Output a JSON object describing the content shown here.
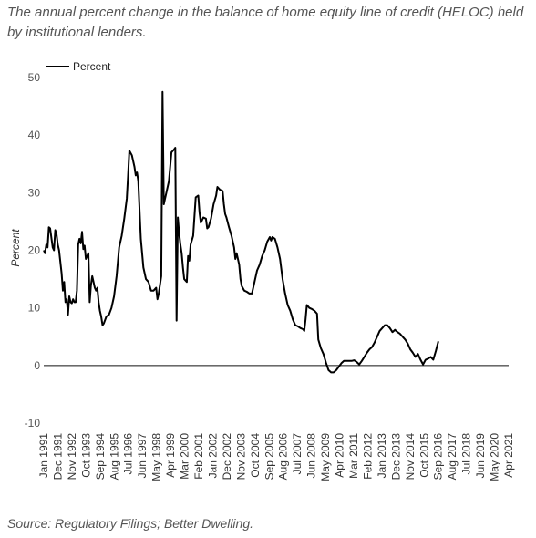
{
  "title": "The annual percent change in the balance of home equity line of credit (HELOC) held by institutional lenders.",
  "source": "Source: Regulatory Filings; Better Dwelling.",
  "chart_data": {
    "type": "line",
    "ylabel": "Percent",
    "ylim": [
      -10,
      50
    ],
    "yticks": [
      -10,
      0,
      10,
      20,
      30,
      40,
      50
    ],
    "legend_position": "top-left",
    "grid": false,
    "zero_line": true,
    "x_tick_labels": [
      "Jan 1991",
      "Dec 1991",
      "Nov 1992",
      "Oct 1993",
      "Sep 1994",
      "Aug 1995",
      "Jul 1996",
      "Jun 1997",
      "May 1998",
      "Apr 1999",
      "Mar 2000",
      "Feb 2001",
      "Jan 2002",
      "Dec 2002",
      "Nov 2003",
      "Oct 2004",
      "Sep 2005",
      "Aug 2006",
      "Jul 2007",
      "Jun 2008",
      "May 2009",
      "Apr 2010",
      "Mar 2011",
      "Feb 2012",
      "Jan 2013",
      "Dec 2013",
      "Nov 2014",
      "Oct 2015",
      "Sep 2016",
      "Aug 2017",
      "Jul 2018",
      "Jun 2019",
      "May 2020",
      "Apr 2021"
    ],
    "series": [
      {
        "name": "Percent",
        "color": "#000000",
        "points": [
          [
            "1991-01",
            20
          ],
          [
            "1991-02",
            19.5
          ],
          [
            "1991-03",
            21
          ],
          [
            "1991-04",
            20.5
          ],
          [
            "1991-05",
            24
          ],
          [
            "1991-06",
            23.8
          ],
          [
            "1991-08",
            20.5
          ],
          [
            "1991-09",
            20
          ],
          [
            "1991-10",
            23.5
          ],
          [
            "1991-11",
            22.8
          ],
          [
            "1991-12",
            21
          ],
          [
            "1992-01",
            20
          ],
          [
            "1992-02",
            18
          ],
          [
            "1992-03",
            16
          ],
          [
            "1992-04",
            13
          ],
          [
            "1992-05",
            14.5
          ],
          [
            "1992-06",
            11
          ],
          [
            "1992-07",
            11.5
          ],
          [
            "1992-08",
            8.8
          ],
          [
            "1992-09",
            12
          ],
          [
            "1992-10",
            11
          ],
          [
            "1992-11",
            10.8
          ],
          [
            "1992-12",
            11.5
          ],
          [
            "1993-01",
            11
          ],
          [
            "1993-02",
            11
          ],
          [
            "1993-03",
            13
          ],
          [
            "1993-04",
            21
          ],
          [
            "1993-05",
            22
          ],
          [
            "1993-06",
            21.2
          ],
          [
            "1993-07",
            23.2
          ],
          [
            "1993-08",
            20.2
          ],
          [
            "1993-09",
            20.8
          ],
          [
            "1993-10",
            18.5
          ],
          [
            "1993-11",
            19
          ],
          [
            "1993-12",
            19.5
          ],
          [
            "1994-01",
            11
          ],
          [
            "1994-02",
            14
          ],
          [
            "1994-03",
            15.5
          ],
          [
            "1994-04",
            14.5
          ],
          [
            "1994-05",
            13.5
          ],
          [
            "1994-06",
            13
          ],
          [
            "1994-07",
            13.5
          ],
          [
            "1994-08",
            11
          ],
          [
            "1994-09",
            9.5
          ],
          [
            "1994-10",
            8.5
          ],
          [
            "1994-11",
            7
          ],
          [
            "1994-12",
            7.3
          ],
          [
            "1995-02",
            8.5
          ],
          [
            "1995-04",
            8.8
          ],
          [
            "1995-06",
            10
          ],
          [
            "1995-08",
            12
          ],
          [
            "1995-10",
            15.5
          ],
          [
            "1995-12",
            20.5
          ],
          [
            "1996-02",
            22.5
          ],
          [
            "1996-04",
            25.5
          ],
          [
            "1996-06",
            29
          ],
          [
            "1996-07",
            33
          ],
          [
            "1996-08",
            37.3
          ],
          [
            "1996-10",
            36.5
          ],
          [
            "1996-12",
            34.5
          ],
          [
            "1997-01",
            33
          ],
          [
            "1997-02",
            33.5
          ],
          [
            "1997-03",
            32
          ],
          [
            "1997-04",
            27
          ],
          [
            "1997-05",
            22
          ],
          [
            "1997-07",
            17
          ],
          [
            "1997-09",
            15
          ],
          [
            "1997-11",
            14.5
          ],
          [
            "1998-01",
            13
          ],
          [
            "1998-03",
            13
          ],
          [
            "1998-05",
            13.5
          ],
          [
            "1998-06",
            11.5
          ],
          [
            "1998-07",
            12.5
          ],
          [
            "1998-09",
            15.5
          ],
          [
            "1998-10",
            47.5
          ],
          [
            "1998-11",
            28
          ],
          [
            "1999-01",
            30
          ],
          [
            "1999-03",
            32
          ],
          [
            "1999-05",
            37
          ],
          [
            "1999-07",
            37.5
          ],
          [
            "1999-08",
            37.8
          ],
          [
            "1999-09",
            7.8
          ],
          [
            "1999-10",
            25.7
          ],
          [
            "1999-11",
            23
          ],
          [
            "1999-12",
            21
          ],
          [
            "2000-01",
            19.5
          ],
          [
            "2000-02",
            17
          ],
          [
            "2000-03",
            15
          ],
          [
            "2000-05",
            14.5
          ],
          [
            "2000-06",
            19
          ],
          [
            "2000-07",
            18.2
          ],
          [
            "2000-08",
            21
          ],
          [
            "2000-10",
            22.5
          ],
          [
            "2000-12",
            29.2
          ],
          [
            "2001-02",
            29.5
          ],
          [
            "2001-03",
            26.5
          ],
          [
            "2001-04",
            24.8
          ],
          [
            "2001-06",
            25.7
          ],
          [
            "2001-08",
            25.5
          ],
          [
            "2001-09",
            23.8
          ],
          [
            "2001-10",
            24
          ],
          [
            "2001-12",
            25.5
          ],
          [
            "2002-02",
            28
          ],
          [
            "2002-04",
            29.5
          ],
          [
            "2002-05",
            31
          ],
          [
            "2002-07",
            30.5
          ],
          [
            "2002-09",
            30.3
          ],
          [
            "2002-10",
            28
          ],
          [
            "2002-11",
            26.3
          ],
          [
            "2002-12",
            25.7
          ],
          [
            "2003-02",
            24
          ],
          [
            "2003-04",
            22.5
          ],
          [
            "2003-06",
            20.5
          ],
          [
            "2003-07",
            18.5
          ],
          [
            "2003-08",
            19.5
          ],
          [
            "2003-10",
            17.5
          ],
          [
            "2003-11",
            15
          ],
          [
            "2003-12",
            13.8
          ],
          [
            "2004-02",
            13
          ],
          [
            "2004-04",
            12.8
          ],
          [
            "2004-06",
            12.5
          ],
          [
            "2004-08",
            12.5
          ],
          [
            "2004-10",
            14.5
          ],
          [
            "2004-12",
            16.5
          ],
          [
            "2005-02",
            17.5
          ],
          [
            "2005-04",
            19
          ],
          [
            "2005-06",
            20
          ],
          [
            "2005-08",
            21.5
          ],
          [
            "2005-10",
            22.3
          ],
          [
            "2005-11",
            21.7
          ],
          [
            "2005-12",
            22.3
          ],
          [
            "2006-02",
            22
          ],
          [
            "2006-04",
            20.5
          ],
          [
            "2006-06",
            18.5
          ],
          [
            "2006-08",
            15
          ],
          [
            "2006-10",
            12.5
          ],
          [
            "2006-12",
            10.5
          ],
          [
            "2007-02",
            9.5
          ],
          [
            "2007-04",
            8
          ],
          [
            "2007-06",
            7
          ],
          [
            "2007-08",
            6.8
          ],
          [
            "2007-10",
            6.5
          ],
          [
            "2007-12",
            6.3
          ],
          [
            "2008-01",
            6
          ],
          [
            "2008-02",
            8
          ],
          [
            "2008-03",
            10.5
          ],
          [
            "2008-05",
            10
          ],
          [
            "2008-07",
            9.8
          ],
          [
            "2008-09",
            9.5
          ],
          [
            "2008-11",
            9
          ],
          [
            "2008-12",
            4.5
          ],
          [
            "2009-02",
            3
          ],
          [
            "2009-04",
            2
          ],
          [
            "2009-06",
            0.5
          ],
          [
            "2009-08",
            -0.8
          ],
          [
            "2009-10",
            -1.2
          ],
          [
            "2009-12",
            -1.2
          ],
          [
            "2010-02",
            -0.8
          ],
          [
            "2010-04",
            -0.2
          ],
          [
            "2010-06",
            0.4
          ],
          [
            "2010-08",
            0.8
          ],
          [
            "2010-10",
            0.8
          ],
          [
            "2010-12",
            0.8
          ],
          [
            "2011-02",
            0.8
          ],
          [
            "2011-04",
            0.9
          ],
          [
            "2011-06",
            0.6
          ],
          [
            "2011-08",
            0.2
          ],
          [
            "2011-10",
            0.8
          ],
          [
            "2011-12",
            1.5
          ],
          [
            "2012-02",
            2.2
          ],
          [
            "2012-04",
            2.8
          ],
          [
            "2012-06",
            3.2
          ],
          [
            "2012-08",
            4
          ],
          [
            "2012-10",
            5
          ],
          [
            "2012-12",
            6
          ],
          [
            "2013-02",
            6.5
          ],
          [
            "2013-04",
            7
          ],
          [
            "2013-06",
            7
          ],
          [
            "2013-08",
            6.5
          ],
          [
            "2013-10",
            5.8
          ],
          [
            "2013-12",
            6.2
          ],
          [
            "2014-02",
            5.8
          ],
          [
            "2014-04",
            5.5
          ],
          [
            "2014-06",
            5
          ],
          [
            "2014-08",
            4.5
          ],
          [
            "2014-10",
            3.8
          ],
          [
            "2014-12",
            2.8
          ],
          [
            "2015-02",
            2.2
          ],
          [
            "2015-04",
            1.5
          ],
          [
            "2015-06",
            2
          ],
          [
            "2015-08",
            1
          ],
          [
            "2015-10",
            0.2
          ],
          [
            "2015-12",
            1
          ],
          [
            "2016-02",
            1.2
          ],
          [
            "2016-04",
            1.5
          ],
          [
            "2016-06",
            1
          ],
          [
            "2016-08",
            2.5
          ],
          [
            "2016-10",
            4.2
          ]
        ]
      }
    ]
  }
}
